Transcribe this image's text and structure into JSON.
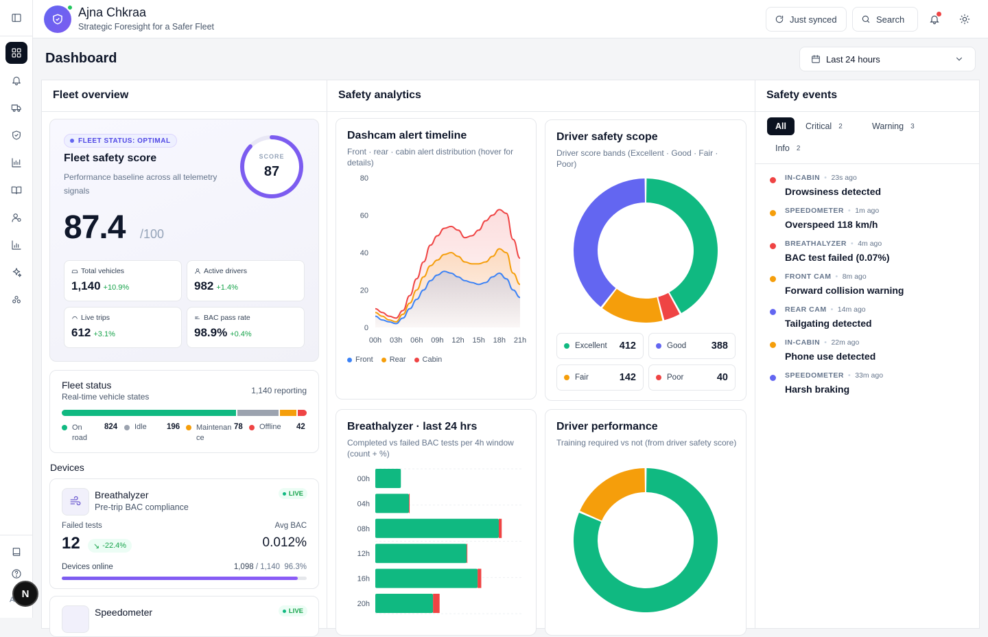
{
  "app": {
    "name": "Ajna Chkraa",
    "tagline": "Strategic Foresight for a Safer Fleet"
  },
  "topbar": {
    "sync_label": "Just synced",
    "search_label": "Search"
  },
  "page": {
    "title": "Dashboard",
    "range": "Last 24 hours"
  },
  "user": {
    "avatar_initial": "N",
    "initials": "AD"
  },
  "fleet_overview": {
    "title": "Fleet overview",
    "status_badge": "FLEET STATUS: OPTIMAL",
    "score_title": "Fleet safety score",
    "score_desc": "Performance baseline across all telemetry signals",
    "score_value": "87.4",
    "score_max": "/100",
    "ring_label": "SCORE",
    "ring_value": "87",
    "ring_fraction": 0.87,
    "kpis": [
      {
        "label": "Total vehicles",
        "value": "1,140",
        "delta": "+10.9%"
      },
      {
        "label": "Active drivers",
        "value": "982",
        "delta": "+1.4%"
      },
      {
        "label": "Live trips",
        "value": "612",
        "delta": "+3.1%"
      },
      {
        "label": "BAC pass rate",
        "value": "98.9%",
        "delta": "+0.4%"
      }
    ],
    "fleet_status": {
      "title": "Fleet status",
      "subtitle": "Real-time vehicle states",
      "reporting": "1,140 reporting",
      "states": [
        {
          "label": "On road",
          "value": "824",
          "color": "#10b981"
        },
        {
          "label": "Idle",
          "value": "196",
          "color": "#9ca3af"
        },
        {
          "label": "Maintenance",
          "value": "78",
          "color": "#f59e0b"
        },
        {
          "label": "Offline",
          "value": "42",
          "color": "#ef4444"
        }
      ]
    },
    "devices_title": "Devices",
    "devices": [
      {
        "name": "Breathalyzer",
        "desc": "Pre-trip BAC compliance",
        "live": "LIVE",
        "failed_label": "Failed tests",
        "failed_value": "12",
        "failed_delta": "-22.4%",
        "avg_label": "Avg BAC",
        "avg_value": "0.012%",
        "online_label": "Devices online",
        "online_count": "1,098",
        "online_total": "/ 1,140",
        "online_pct": "96.3%",
        "online_fraction": 0.963
      },
      {
        "name": "Speedometer",
        "live": "LIVE"
      }
    ]
  },
  "safety_analytics": {
    "title": "Safety analytics",
    "dashcam": {
      "title": "Dashcam alert timeline",
      "subtitle": "Front · rear · cabin alert distribution (hover for details)"
    },
    "scope": {
      "title": "Driver safety scope",
      "subtitle": "Driver score bands (Excellent · Good · Fair · Poor)",
      "bands": [
        {
          "label": "Excellent",
          "value": "412",
          "color": "#10b981"
        },
        {
          "label": "Good",
          "value": "388",
          "color": "#6366f1"
        },
        {
          "label": "Fair",
          "value": "142",
          "color": "#f59e0b"
        },
        {
          "label": "Poor",
          "value": "40",
          "color": "#ef4444"
        }
      ]
    },
    "breath": {
      "title": "Breathalyzer · last 24 hrs",
      "subtitle": "Completed vs failed BAC tests per 4h window (count + %)"
    },
    "performance": {
      "title": "Driver performance",
      "subtitle": "Training required vs not (from driver safety score)"
    }
  },
  "chart_data": [
    {
      "type": "area",
      "title": "Dashcam alert timeline",
      "x": [
        "00h",
        "01h",
        "02h",
        "03h",
        "04h",
        "05h",
        "06h",
        "07h",
        "08h",
        "09h",
        "10h",
        "11h",
        "12h",
        "13h",
        "14h",
        "15h",
        "16h",
        "17h",
        "18h",
        "19h",
        "20h",
        "21h"
      ],
      "xticks": [
        "00h",
        "03h",
        "06h",
        "09h",
        "12h",
        "15h",
        "18h",
        "21h"
      ],
      "ylim": [
        0,
        80
      ],
      "yticks": [
        0,
        20,
        40,
        60,
        80
      ],
      "series": [
        {
          "name": "Front",
          "color": "#3b82f6",
          "values": [
            6,
            4,
            3,
            2,
            5,
            10,
            15,
            20,
            25,
            28,
            30,
            29,
            27,
            25,
            24,
            23,
            24,
            27,
            29,
            26,
            20,
            16
          ]
        },
        {
          "name": "Rear",
          "color": "#f59e0b",
          "values": [
            8,
            6,
            4,
            3,
            7,
            13,
            20,
            27,
            33,
            36,
            39,
            40,
            38,
            35,
            34,
            34,
            35,
            38,
            42,
            40,
            29,
            23
          ]
        },
        {
          "name": "Cabin",
          "color": "#ef4444",
          "values": [
            10,
            8,
            6,
            5,
            9,
            17,
            26,
            35,
            44,
            49,
            53,
            54,
            52,
            48,
            49,
            52,
            57,
            60,
            63,
            61,
            47,
            37
          ]
        }
      ]
    },
    {
      "type": "pie",
      "title": "Driver safety scope",
      "categories": [
        "Excellent",
        "Poor",
        "Fair",
        "Good"
      ],
      "values": [
        412,
        40,
        142,
        388
      ],
      "colors": [
        "#10b981",
        "#ef4444",
        "#f59e0b",
        "#6366f1"
      ]
    },
    {
      "type": "bar",
      "title": "Breathalyzer · last 24 hrs",
      "categories": [
        "00h",
        "04h",
        "08h",
        "12h",
        "16h",
        "20h"
      ],
      "series": [
        {
          "name": "Completed",
          "color": "#10b981",
          "values": [
            70,
            92,
            338,
            250,
            280,
            158
          ]
        },
        {
          "name": "Failed",
          "color": "#ef4444",
          "values": [
            0,
            2,
            8,
            2,
            10,
            18
          ]
        }
      ],
      "xlim": [
        0,
        400
      ]
    },
    {
      "type": "pie",
      "title": "Driver performance",
      "categories": [
        "Training not required",
        "Training required"
      ],
      "values": [
        800,
        182
      ],
      "colors": [
        "#10b981",
        "#f59e0b"
      ]
    }
  ],
  "safety_events": {
    "title": "Safety events",
    "tabs": [
      {
        "label": "All",
        "count": ""
      },
      {
        "label": "Critical",
        "count": "2"
      },
      {
        "label": "Warning",
        "count": "3"
      },
      {
        "label": "Info",
        "count": "2"
      }
    ],
    "events": [
      {
        "category": "IN-CABIN",
        "time": "23s ago",
        "title": "Drowsiness detected",
        "color": "#ef4444"
      },
      {
        "category": "SPEEDOMETER",
        "time": "1m ago",
        "title": "Overspeed 118 km/h",
        "color": "#f59e0b"
      },
      {
        "category": "BREATHALYZER",
        "time": "4m ago",
        "title": "BAC test failed (0.07%)",
        "color": "#ef4444"
      },
      {
        "category": "FRONT CAM",
        "time": "8m ago",
        "title": "Forward collision warning",
        "color": "#f59e0b"
      },
      {
        "category": "REAR CAM",
        "time": "14m ago",
        "title": "Tailgating detected",
        "color": "#6366f1"
      },
      {
        "category": "IN-CABIN",
        "time": "22m ago",
        "title": "Phone use detected",
        "color": "#f59e0b"
      },
      {
        "category": "SPEEDOMETER",
        "time": "33m ago",
        "title": "Harsh braking",
        "color": "#6366f1"
      }
    ]
  }
}
